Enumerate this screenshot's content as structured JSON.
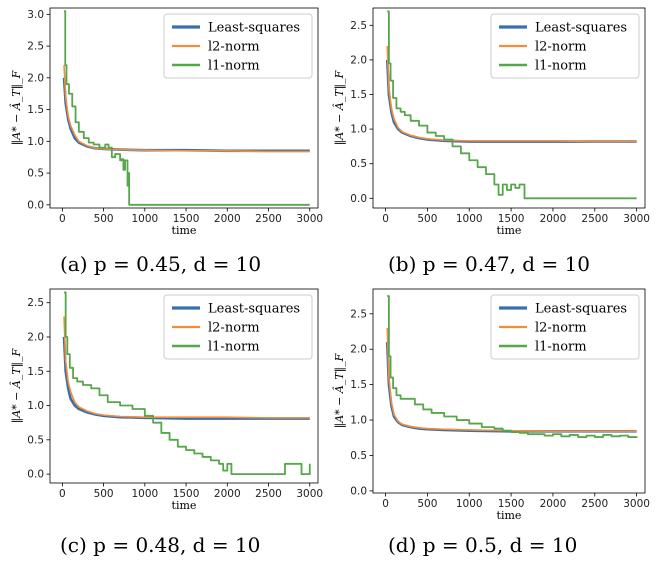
{
  "colors": {
    "least_squares": "#3a6fae",
    "l2": "#f28e3b",
    "l1": "#56a64a",
    "axis": "#000000",
    "legend_border": "#cccccc"
  },
  "panels": [
    {
      "caption": "(a) p = 0.45, d = 10"
    },
    {
      "caption": "(b) p = 0.47, d = 10"
    },
    {
      "caption": "(c) p = 0.48, d = 10"
    },
    {
      "caption": "(d) p = 0.5, d = 10"
    }
  ],
  "chart_data": [
    {
      "type": "line",
      "xlabel": "time",
      "ylabel": "‖A* − Â_T‖_F",
      "xlim": [
        -150,
        3100
      ],
      "ylim": [
        -0.05,
        3.1
      ],
      "xticks": [
        0,
        500,
        1000,
        1500,
        2000,
        2500,
        3000
      ],
      "yticks": [
        0.0,
        0.5,
        1.0,
        1.5,
        2.0,
        2.5,
        3.0
      ],
      "ytick_labels": [
        "0.0",
        "0.5",
        "1.0",
        "1.5",
        "2.0",
        "2.5",
        "3.0"
      ],
      "legend_position": "top-right",
      "series": [
        {
          "name": "Least-squares",
          "color": "#3a6fae",
          "x": [
            20,
            40,
            70,
            100,
            150,
            200,
            300,
            400,
            500,
            700,
            1000,
            1500,
            2000,
            2500,
            3000
          ],
          "y": [
            2.0,
            1.6,
            1.35,
            1.2,
            1.05,
            0.98,
            0.92,
            0.89,
            0.88,
            0.87,
            0.86,
            0.86,
            0.85,
            0.85,
            0.85
          ]
        },
        {
          "name": "l2-norm",
          "color": "#f28e3b",
          "x": [
            20,
            40,
            70,
            100,
            150,
            200,
            300,
            400,
            500,
            700,
            1000,
            1500,
            2000,
            2500,
            3000
          ],
          "y": [
            2.2,
            1.7,
            1.4,
            1.25,
            1.1,
            1.0,
            0.93,
            0.89,
            0.88,
            0.87,
            0.86,
            0.85,
            0.85,
            0.84,
            0.84
          ]
        },
        {
          "name": "l1-norm",
          "color": "#56a64a",
          "x": [
            20,
            35,
            50,
            80,
            120,
            160,
            200,
            260,
            320,
            380,
            450,
            520,
            560,
            600,
            640,
            700,
            720,
            740,
            760,
            790,
            800,
            810,
            3000
          ],
          "y": [
            3.05,
            2.2,
            1.9,
            1.75,
            1.55,
            1.3,
            1.15,
            1.05,
            0.98,
            0.95,
            0.9,
            0.95,
            0.9,
            0.75,
            0.8,
            0.7,
            0.72,
            0.55,
            0.7,
            0.3,
            0.5,
            0.0,
            0.0
          ]
        }
      ]
    },
    {
      "type": "line",
      "xlabel": "time",
      "ylabel": "‖A* − Â_T‖_F",
      "xlim": [
        -150,
        3100
      ],
      "ylim": [
        -0.14,
        2.75
      ],
      "xticks": [
        0,
        500,
        1000,
        1500,
        2000,
        2500,
        3000
      ],
      "yticks": [
        0.0,
        0.5,
        1.0,
        1.5,
        2.0,
        2.5
      ],
      "ytick_labels": [
        "0.0",
        "0.5",
        "1.0",
        "1.5",
        "2.0",
        "2.5"
      ],
      "legend_position": "top-right",
      "series": [
        {
          "name": "Least-squares",
          "color": "#3a6fae",
          "x": [
            20,
            40,
            70,
            100,
            150,
            200,
            300,
            400,
            500,
            700,
            1000,
            1500,
            2000,
            2500,
            3000
          ],
          "y": [
            2.0,
            1.5,
            1.25,
            1.1,
            1.0,
            0.95,
            0.9,
            0.87,
            0.85,
            0.83,
            0.82,
            0.82,
            0.82,
            0.82,
            0.82
          ]
        },
        {
          "name": "l2-norm",
          "color": "#f28e3b",
          "x": [
            20,
            40,
            70,
            100,
            150,
            200,
            300,
            400,
            500,
            700,
            1000,
            1500,
            2000,
            2500,
            3000
          ],
          "y": [
            2.2,
            1.6,
            1.3,
            1.15,
            1.02,
            0.96,
            0.91,
            0.88,
            0.86,
            0.84,
            0.83,
            0.83,
            0.83,
            0.82,
            0.82
          ]
        },
        {
          "name": "l1-norm",
          "color": "#56a64a",
          "x": [
            20,
            40,
            60,
            90,
            130,
            180,
            230,
            300,
            400,
            500,
            600,
            700,
            800,
            900,
            1000,
            1100,
            1200,
            1300,
            1350,
            1400,
            1450,
            1500,
            1550,
            1600,
            1650,
            1660,
            3000
          ],
          "y": [
            2.7,
            1.95,
            1.7,
            1.45,
            1.3,
            1.25,
            1.2,
            1.12,
            1.05,
            0.95,
            0.9,
            0.85,
            0.75,
            0.65,
            0.55,
            0.45,
            0.35,
            0.2,
            0.05,
            0.2,
            0.12,
            0.2,
            0.15,
            0.2,
            0.2,
            0.0,
            0.0
          ]
        }
      ]
    },
    {
      "type": "line",
      "xlabel": "time",
      "ylabel": "‖A* − Â_T‖_F",
      "xlim": [
        -150,
        3100
      ],
      "ylim": [
        -0.13,
        2.7
      ],
      "xticks": [
        0,
        500,
        1000,
        1500,
        2000,
        2500,
        3000
      ],
      "yticks": [
        0.0,
        0.5,
        1.0,
        1.5,
        2.0,
        2.5
      ],
      "ytick_labels": [
        "0.0",
        "0.5",
        "1.0",
        "1.5",
        "2.0",
        "2.5"
      ],
      "legend_position": "top-right",
      "series": [
        {
          "name": "Least-squares",
          "color": "#3a6fae",
          "x": [
            20,
            40,
            70,
            100,
            150,
            200,
            300,
            400,
            500,
            700,
            1000,
            1500,
            2000,
            2500,
            3000
          ],
          "y": [
            2.0,
            1.5,
            1.25,
            1.1,
            1.0,
            0.95,
            0.9,
            0.87,
            0.85,
            0.83,
            0.82,
            0.81,
            0.81,
            0.81,
            0.81
          ]
        },
        {
          "name": "l2-norm",
          "color": "#f28e3b",
          "x": [
            20,
            40,
            70,
            100,
            150,
            200,
            300,
            400,
            500,
            700,
            1000,
            1500,
            2000,
            2500,
            3000
          ],
          "y": [
            2.3,
            1.65,
            1.35,
            1.2,
            1.05,
            0.98,
            0.92,
            0.88,
            0.86,
            0.84,
            0.83,
            0.83,
            0.83,
            0.82,
            0.82
          ]
        },
        {
          "name": "l1-norm",
          "color": "#56a64a",
          "x": [
            20,
            40,
            60,
            90,
            130,
            180,
            250,
            350,
            450,
            550,
            700,
            850,
            1000,
            1100,
            1200,
            1300,
            1400,
            1500,
            1600,
            1700,
            1800,
            1900,
            1950,
            2000,
            2050,
            2650,
            2700,
            2850,
            2900,
            3000
          ],
          "y": [
            2.65,
            2.0,
            1.75,
            1.55,
            1.4,
            1.35,
            1.3,
            1.25,
            1.15,
            1.05,
            1.0,
            0.95,
            0.85,
            0.75,
            0.6,
            0.5,
            0.4,
            0.35,
            0.3,
            0.25,
            0.2,
            0.15,
            0.05,
            0.15,
            0.0,
            0.0,
            0.15,
            0.15,
            0.0,
            0.15
          ]
        }
      ]
    },
    {
      "type": "line",
      "xlabel": "time",
      "ylabel": "‖A* − Â_T‖_F",
      "xlim": [
        -150,
        3100
      ],
      "ylim": [
        -0.03,
        2.85
      ],
      "xticks": [
        0,
        500,
        1000,
        1500,
        2000,
        2500,
        3000
      ],
      "yticks": [
        0.0,
        0.5,
        1.0,
        1.5,
        2.0,
        2.5
      ],
      "ytick_labels": [
        "0.0",
        "0.5",
        "1.0",
        "1.5",
        "2.0",
        "2.5"
      ],
      "legend_position": "top-right",
      "series": [
        {
          "name": "Least-squares",
          "color": "#3a6fae",
          "x": [
            20,
            40,
            70,
            100,
            150,
            200,
            300,
            400,
            500,
            700,
            1000,
            1500,
            2000,
            2500,
            3000
          ],
          "y": [
            2.1,
            1.5,
            1.2,
            1.05,
            0.97,
            0.93,
            0.9,
            0.88,
            0.87,
            0.86,
            0.85,
            0.84,
            0.84,
            0.84,
            0.84
          ]
        },
        {
          "name": "l2-norm",
          "color": "#f28e3b",
          "x": [
            20,
            40,
            70,
            100,
            150,
            200,
            300,
            400,
            500,
            700,
            1000,
            1500,
            2000,
            2500,
            3000
          ],
          "y": [
            2.3,
            1.6,
            1.25,
            1.08,
            0.98,
            0.94,
            0.91,
            0.89,
            0.88,
            0.87,
            0.86,
            0.85,
            0.84,
            0.84,
            0.84
          ]
        },
        {
          "name": "l1-norm",
          "color": "#56a64a",
          "x": [
            20,
            40,
            60,
            90,
            130,
            180,
            250,
            350,
            450,
            550,
            700,
            850,
            1000,
            1150,
            1300,
            1400,
            1500,
            1600,
            1700,
            1800,
            1900,
            2000,
            2100,
            2200,
            2300,
            2400,
            2500,
            2600,
            2700,
            2800,
            2900,
            3000
          ],
          "y": [
            2.75,
            1.9,
            1.6,
            1.45,
            1.35,
            1.3,
            1.3,
            1.22,
            1.15,
            1.1,
            1.05,
            1.0,
            0.95,
            0.9,
            0.88,
            0.85,
            0.83,
            0.82,
            0.8,
            0.8,
            0.78,
            0.8,
            0.77,
            0.79,
            0.76,
            0.78,
            0.76,
            0.79,
            0.77,
            0.78,
            0.76,
            0.75
          ]
        }
      ]
    }
  ]
}
